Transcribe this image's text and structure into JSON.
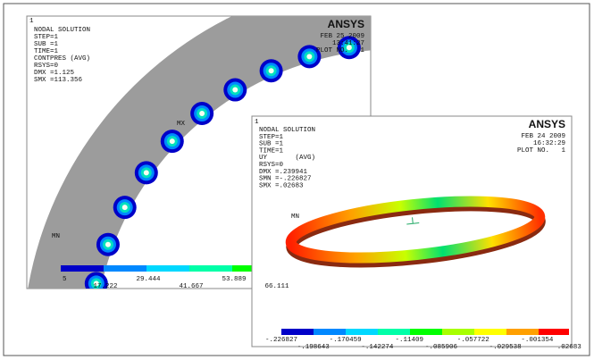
{
  "left_window": {
    "index": "1",
    "info": [
      "NODAL SOLUTION",
      "STEP=1",
      "SUB =1",
      "TIME=1",
      "CONTPRES (AVG)",
      "RSYS=0",
      "DMX =1.125",
      "SMX =113.356"
    ],
    "date": "FEB 25 2009",
    "time": "13:41:27",
    "plot": "PLOT NO.   1",
    "logo": "ANSYS",
    "mn": "MN",
    "mx": "MX",
    "legend": [
      "5",
      "17.222",
      "29.444",
      "41.667",
      "53.889",
      "66.111"
    ]
  },
  "right_window": {
    "index": "1",
    "info": [
      "NODAL SOLUTION",
      "STEP=1",
      "SUB =1",
      "TIME=1",
      "UY       (AVG)",
      "RSYS=0",
      "DMX =.239941",
      "SMN =-.226827",
      "SMX =.02683"
    ],
    "date": "FEB 24 2009",
    "time": "16:32:29",
    "plot": "PLOT NO.   1",
    "logo": "ANSYS",
    "mn": "MN",
    "legend": [
      "-.226827",
      "-.198643",
      "-.170459",
      "-.142274",
      "-.11409",
      "-.085906",
      "-.057722",
      "-.029538",
      "-.001354",
      ".02683"
    ]
  }
}
